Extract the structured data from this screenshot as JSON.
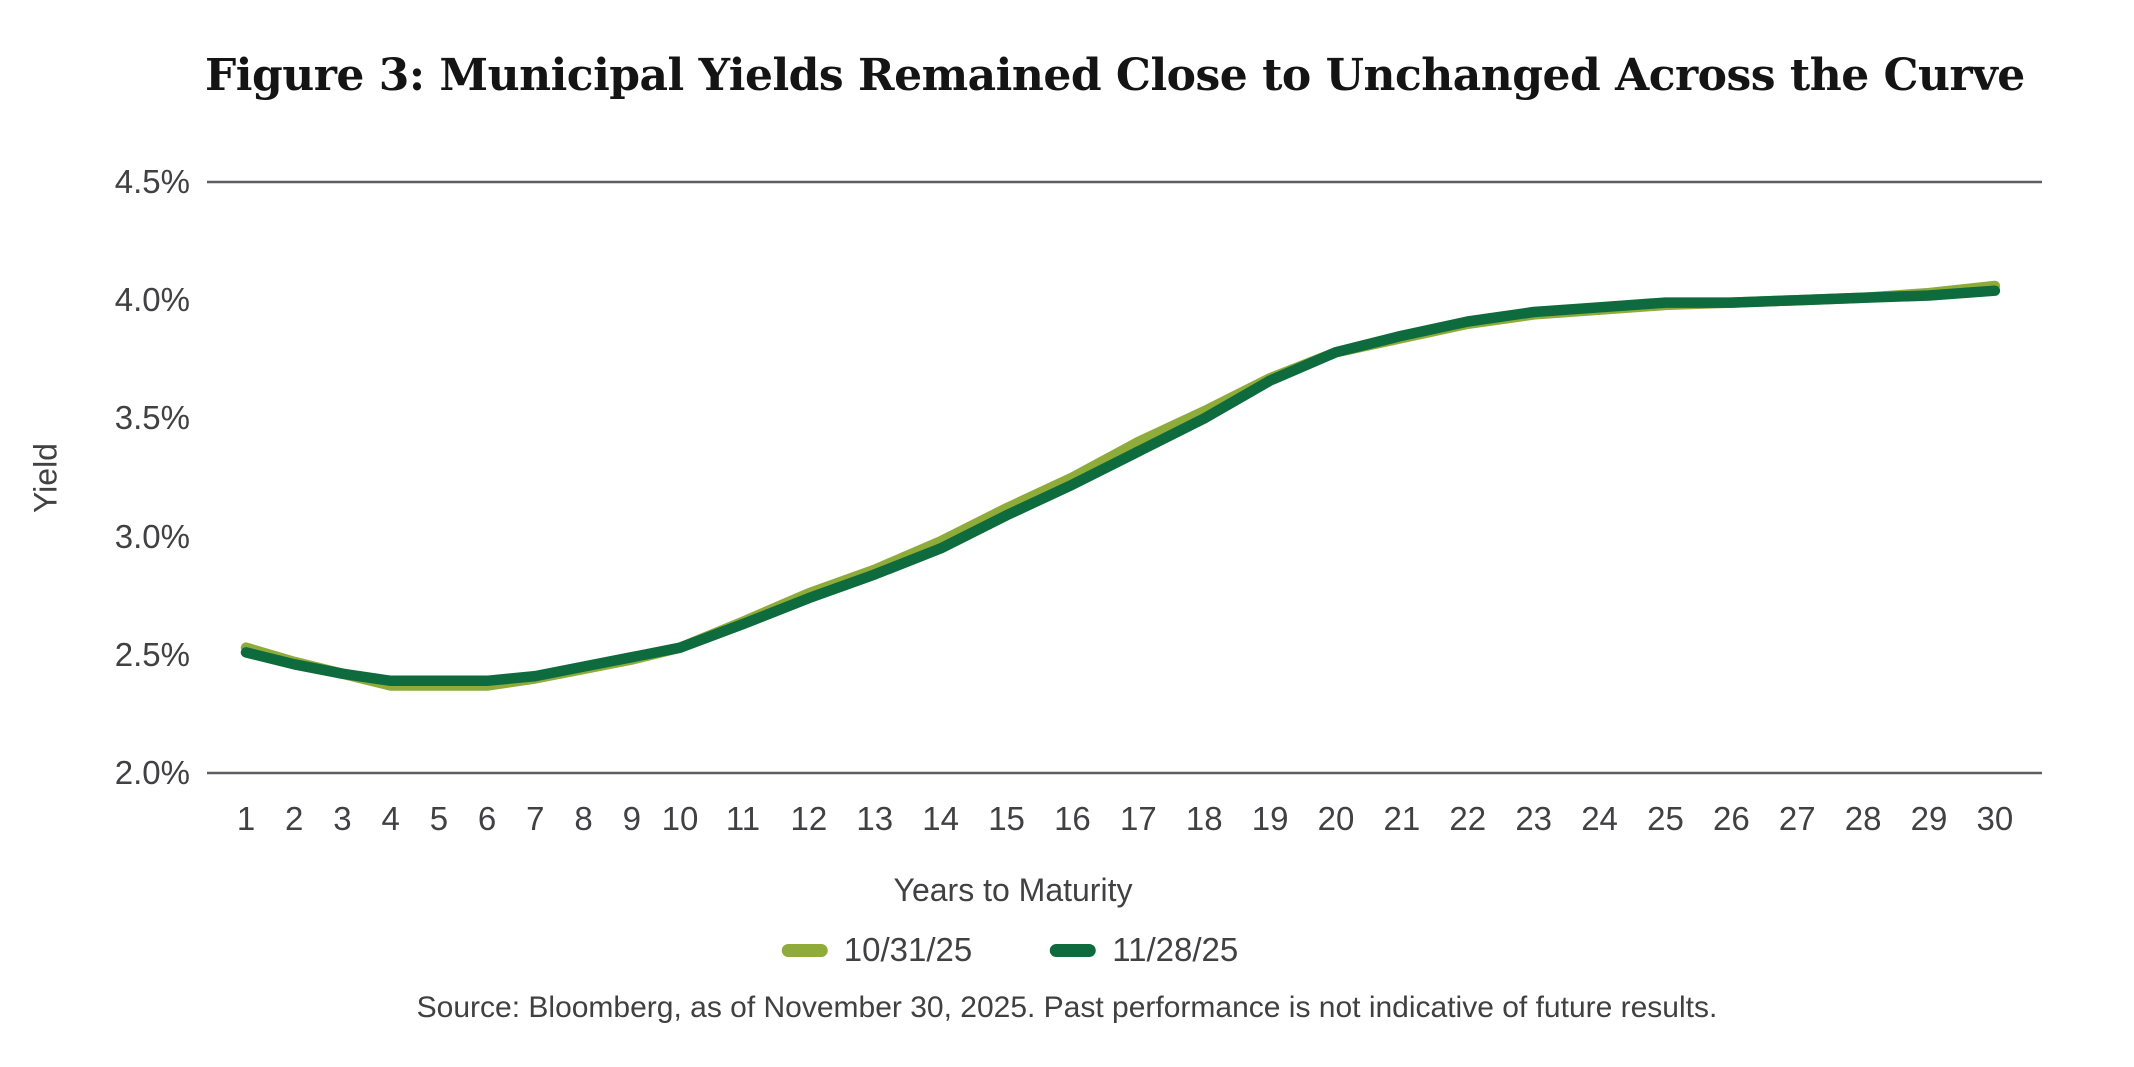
{
  "figure": {
    "title": "Figure 3: Municipal Yields Remained Close to Unchanged Across the Curve"
  },
  "chart_data": {
    "type": "line",
    "title": "Figure 3: Municipal Yields Remained Close to Unchanged Across the Curve",
    "xlabel": "Years to Maturity",
    "ylabel": "Yield",
    "x": [
      1,
      2,
      3,
      4,
      5,
      6,
      7,
      8,
      9,
      10,
      11,
      12,
      13,
      14,
      15,
      16,
      17,
      18,
      19,
      20,
      21,
      22,
      23,
      24,
      25,
      26,
      27,
      28,
      29,
      30
    ],
    "y_tick_labels": [
      "4.5%",
      "4.0%",
      "3.5%",
      "3.0%",
      "2.5%",
      "2.0%"
    ],
    "ylim": [
      2.0,
      4.5
    ],
    "grid": "horizontal rules at top (4.5%) and bottom (2.0%) only",
    "legend_position": "bottom-center",
    "series": [
      {
        "name": "10/31/25",
        "color": "#8FAC3B",
        "values": [
          2.53,
          2.47,
          2.42,
          2.37,
          2.37,
          2.37,
          2.4,
          2.44,
          2.48,
          2.53,
          2.64,
          2.76,
          2.86,
          2.98,
          3.12,
          3.25,
          3.4,
          3.53,
          3.67,
          3.78,
          3.84,
          3.9,
          3.94,
          3.96,
          3.98,
          3.99,
          4.0,
          4.01,
          4.03,
          4.06
        ]
      },
      {
        "name": "11/28/25",
        "color": "#0E6B3D",
        "values": [
          2.51,
          2.46,
          2.42,
          2.39,
          2.39,
          2.39,
          2.41,
          2.45,
          2.49,
          2.53,
          2.63,
          2.74,
          2.84,
          2.95,
          3.09,
          3.22,
          3.36,
          3.5,
          3.66,
          3.78,
          3.85,
          3.91,
          3.95,
          3.97,
          3.99,
          3.99,
          4.0,
          4.01,
          4.02,
          4.04
        ]
      }
    ],
    "source": "Source: Bloomberg, as of November 30, 2025. Past performance is not indicative of future results."
  },
  "style": {
    "axis_rule_color": "#5E5F62",
    "tick_text_color": "#414042"
  }
}
